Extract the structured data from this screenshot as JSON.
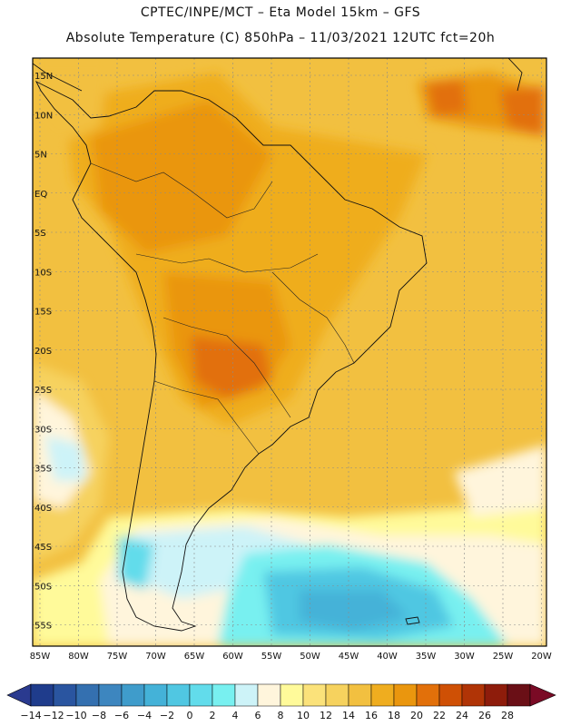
{
  "header": {
    "line1": "CPTEC/INPE/MCT –  Eta Model 15km – GFS",
    "line2": "Absolute Temperature (C) 850hPa – 11/03/2021 12UTC fct=20h"
  },
  "map": {
    "lat_labels": [
      "15N",
      "10N",
      "5N",
      "EQ",
      "5S",
      "10S",
      "15S",
      "20S",
      "25S",
      "30S",
      "35S",
      "40S",
      "45S",
      "50S",
      "55S"
    ],
    "lon_labels": [
      "85W",
      "80W",
      "75W",
      "70W",
      "65W",
      "60W",
      "55W",
      "50W",
      "45W",
      "40W",
      "35W",
      "30W",
      "25W",
      "20W"
    ],
    "field": "temperature 850hPa"
  },
  "colorbar": {
    "labels": [
      "-14",
      "-12",
      "-10",
      "-8",
      "-6",
      "-4",
      "-2",
      "0",
      "2",
      "4",
      "6",
      "8",
      "10",
      "12",
      "14",
      "16",
      "18",
      "20",
      "22",
      "24",
      "26",
      "28"
    ],
    "colors": [
      "#1f3c8c",
      "#2a55a0",
      "#3470b0",
      "#3d86bf",
      "#3f9ccb",
      "#44b2d8",
      "#50c7e2",
      "#62dceb",
      "#78f0f0",
      "#cdf3f8",
      "#fff5dc",
      "#fffa9a",
      "#fbe27a",
      "#f6d25e",
      "#f2c040",
      "#efad1f",
      "#ea960e",
      "#e2700a",
      "#cf5005",
      "#b03406",
      "#8e1c0b",
      "#6a0f16"
    ],
    "end_left": "#2a3a8f",
    "end_right": "#7a0a25"
  }
}
